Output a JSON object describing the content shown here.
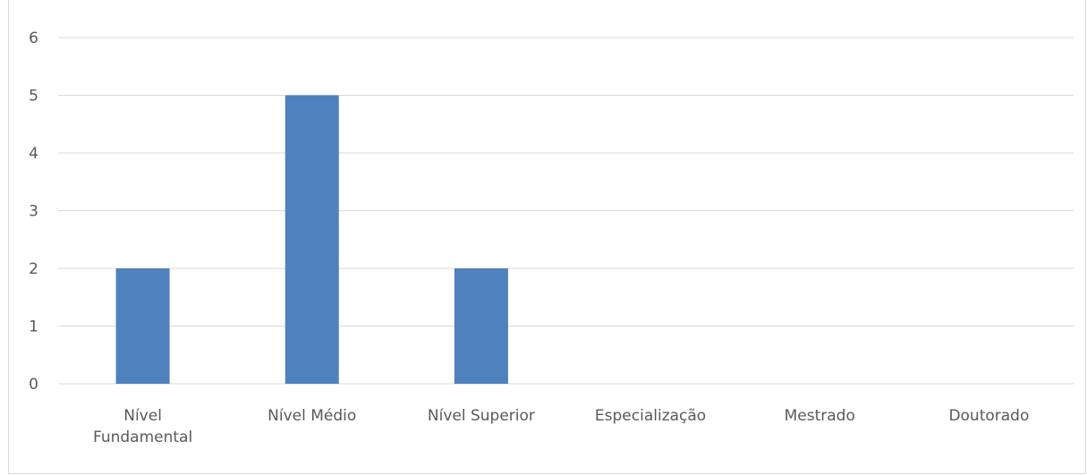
{
  "chart_data": {
    "type": "bar",
    "title": "",
    "xlabel": "",
    "ylabel": "",
    "categories": [
      "Nível Fundamental",
      "Nível Médio",
      "Nível Superior",
      "Especialização",
      "Mestrado",
      "Doutorado"
    ],
    "category_lines": [
      [
        "Nível",
        "Fundamental"
      ],
      [
        "Nível Médio"
      ],
      [
        "Nível Superior"
      ],
      [
        "Especialização"
      ],
      [
        "Mestrado"
      ],
      [
        "Doutorado"
      ]
    ],
    "values": [
      2,
      5,
      2,
      0,
      0,
      0
    ],
    "ylim": [
      0,
      6
    ],
    "yticks": [
      0,
      1,
      2,
      3,
      4,
      5,
      6
    ],
    "grid": true,
    "legend": "none",
    "colors": {
      "bar": "#4f81bd",
      "grid": "#d9d9d9",
      "tick_text": "#595959"
    }
  }
}
